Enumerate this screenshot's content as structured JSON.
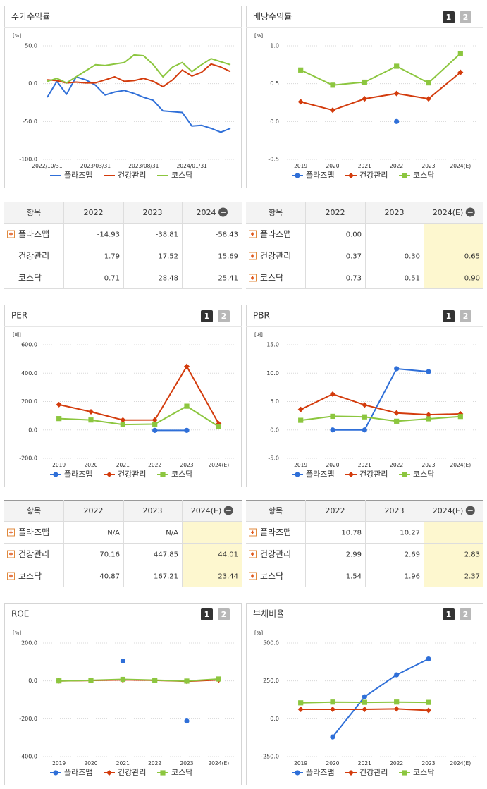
{
  "chart_data": [
    {
      "type": "line",
      "title": "주가수익률",
      "unit": "[%]",
      "categories": [
        "2022/10/31",
        null,
        null,
        null,
        null,
        "2023/03/31",
        null,
        null,
        null,
        null,
        "2023/08/31",
        null,
        null,
        null,
        null,
        "2024/01/31",
        null,
        null,
        null,
        null
      ],
      "ylim": [
        -100,
        50
      ],
      "yticks": [
        {
          "value": -100,
          "label": "-100.0"
        },
        {
          "value": -50,
          "label": "-50.0"
        },
        {
          "value": 0,
          "label": "0.0"
        },
        {
          "value": 50,
          "label": "50.0"
        }
      ],
      "grid": true,
      "series": [
        {
          "name": "플라즈맵",
          "color": "#2f6fd8",
          "values": [
            -18,
            3,
            -14,
            9,
            5,
            -2,
            -15,
            -11,
            -9,
            -13,
            -18,
            -22,
            -36,
            -37,
            -38,
            -56,
            -55,
            -59,
            -64,
            -59
          ]
        },
        {
          "name": "건강관리",
          "color": "#d33b0c",
          "values": [
            5,
            4,
            1,
            2,
            1,
            1,
            5,
            9,
            3,
            4,
            7,
            3,
            -4,
            5,
            18,
            10,
            15,
            26,
            22,
            16
          ]
        },
        {
          "name": "코스닥",
          "color": "#8cc63f",
          "values": [
            3,
            7,
            1,
            9,
            17,
            25,
            24,
            26,
            28,
            38,
            37,
            25,
            9,
            22,
            28,
            16,
            25,
            33,
            29,
            25
          ]
        }
      ]
    },
    {
      "type": "line",
      "title": "배당수익률",
      "unit": "[%]",
      "buttons": [
        "1",
        "2"
      ],
      "categories": [
        "2019",
        "2020",
        "2021",
        "2022",
        "2023",
        "2024(E)"
      ],
      "ylim": [
        -0.5,
        1.0
      ],
      "yticks": [
        -0.5,
        {
          "value": 0,
          "label": "0.0"
        },
        0.5,
        {
          "value": 1.0,
          "label": "1.0"
        }
      ],
      "grid": true,
      "series": [
        {
          "name": "플라즈맵",
          "color": "#2f6fd8",
          "marker": "circle",
          "values": [
            null,
            null,
            null,
            0.0,
            null,
            null
          ]
        },
        {
          "name": "건강관리",
          "color": "#d33b0c",
          "marker": "diamond",
          "values": [
            0.26,
            0.15,
            0.3,
            0.37,
            0.3,
            0.65
          ]
        },
        {
          "name": "코스닥",
          "color": "#8cc63f",
          "marker": "square",
          "values": [
            0.68,
            0.48,
            0.52,
            0.73,
            0.51,
            0.9
          ]
        }
      ]
    },
    {
      "type": "line",
      "title": "PER",
      "unit": "[배]",
      "buttons": [
        "1",
        "2"
      ],
      "categories": [
        "2019",
        "2020",
        "2021",
        "2022",
        "2023",
        "2024(E)"
      ],
      "ylim": [
        -200,
        600
      ],
      "yticks": [
        {
          "value": -200,
          "label": "-200.0"
        },
        {
          "value": 0,
          "label": "0.0"
        },
        {
          "value": 200,
          "label": "200.0"
        },
        {
          "value": 400,
          "label": "400.0"
        },
        {
          "value": 600,
          "label": "600.0"
        }
      ],
      "grid": true,
      "series": [
        {
          "name": "플라즈맵",
          "color": "#2f6fd8",
          "marker": "circle",
          "values": [
            null,
            null,
            null,
            -3,
            -3,
            null
          ]
        },
        {
          "name": "건강관리",
          "color": "#d33b0c",
          "marker": "diamond",
          "values": [
            178,
            128,
            70,
            70.16,
            447.85,
            44.01
          ]
        },
        {
          "name": "코스닥",
          "color": "#8cc63f",
          "marker": "square",
          "values": [
            80,
            70,
            38,
            40.87,
            167.21,
            23.44
          ]
        }
      ]
    },
    {
      "type": "line",
      "title": "PBR",
      "unit": "[배]",
      "buttons": [
        "1",
        "2"
      ],
      "categories": [
        "2019",
        "2020",
        "2021",
        "2022",
        "2023",
        "2024(E)"
      ],
      "ylim": [
        -5,
        15
      ],
      "yticks": [
        {
          "value": -5,
          "label": "-5.0"
        },
        {
          "value": 0,
          "label": "0.0"
        },
        {
          "value": 5,
          "label": "5.0"
        },
        {
          "value": 10,
          "label": "10.0"
        },
        {
          "value": 15,
          "label": "15.0"
        }
      ],
      "grid": true,
      "series": [
        {
          "name": "플라즈맵",
          "color": "#2f6fd8",
          "marker": "circle",
          "values": [
            null,
            0,
            0,
            10.78,
            10.27,
            null
          ]
        },
        {
          "name": "건강관리",
          "color": "#d33b0c",
          "marker": "diamond",
          "values": [
            3.6,
            6.3,
            4.4,
            2.99,
            2.69,
            2.83
          ]
        },
        {
          "name": "코스닥",
          "color": "#8cc63f",
          "marker": "square",
          "values": [
            1.7,
            2.4,
            2.3,
            1.54,
            1.96,
            2.37
          ]
        }
      ]
    },
    {
      "type": "line",
      "title": "ROE",
      "unit": "[%]",
      "buttons": [
        "1",
        "2"
      ],
      "categories": [
        "2019",
        "2020",
        "2021",
        "2022",
        "2023",
        "2024(E)"
      ],
      "ylim": [
        -400,
        200
      ],
      "yticks": [
        {
          "value": -400,
          "label": "-400.0"
        },
        {
          "value": -200,
          "label": "-200.0"
        },
        {
          "value": 0,
          "label": "0.0"
        },
        {
          "value": 200,
          "label": "200.0"
        }
      ],
      "grid": true,
      "series": [
        {
          "name": "플라즈맵",
          "color": "#2f6fd8",
          "marker": "circle",
          "values": [
            null,
            null,
            105,
            null,
            -212,
            null
          ]
        },
        {
          "name": "건강관리",
          "color": "#d33b0c",
          "marker": "diamond",
          "values": [
            0,
            2,
            5,
            3,
            -2,
            5
          ]
        },
        {
          "name": "코스닥",
          "color": "#8cc63f",
          "marker": "square",
          "values": [
            0,
            3,
            8,
            4,
            -1,
            10
          ]
        }
      ]
    },
    {
      "type": "line",
      "title": "부채비율",
      "unit": "[%]",
      "buttons": [
        "1",
        "2"
      ],
      "categories": [
        "2019",
        "2020",
        "2021",
        "2022",
        "2023",
        "2024(E)"
      ],
      "ylim": [
        -250,
        500
      ],
      "yticks": [
        {
          "value": -250,
          "label": "-250.0"
        },
        {
          "value": 0,
          "label": "0.0"
        },
        {
          "value": 250,
          "label": "250.0"
        },
        {
          "value": 500,
          "label": "500.0"
        }
      ],
      "grid": true,
      "series": [
        {
          "name": "플라즈맵",
          "color": "#2f6fd8",
          "marker": "circle",
          "values": [
            null,
            -120,
            145,
            290,
            395,
            null
          ]
        },
        {
          "name": "건강관리",
          "color": "#d33b0c",
          "marker": "diamond",
          "values": [
            62,
            62,
            62,
            65,
            55,
            null
          ]
        },
        {
          "name": "코스닥",
          "color": "#8cc63f",
          "marker": "square",
          "values": [
            105,
            110,
            108,
            110,
            108,
            null
          ]
        }
      ]
    }
  ],
  "tables": [
    {
      "columns": [
        "항목",
        "2022",
        "2023",
        "2024"
      ],
      "expandable": [
        true,
        false,
        false
      ],
      "highlight_last": false,
      "rows": [
        [
          "플라즈맵",
          "-14.93",
          "-38.81",
          "-58.43"
        ],
        [
          "건강관리",
          "1.79",
          "17.52",
          "15.69"
        ],
        [
          "코스닥",
          "0.71",
          "28.48",
          "25.41"
        ]
      ]
    },
    {
      "columns": [
        "항목",
        "2022",
        "2023",
        "2024(E)"
      ],
      "expandable": [
        true,
        true,
        true
      ],
      "highlight_last": true,
      "rows": [
        [
          "플라즈맵",
          "0.00",
          null,
          null
        ],
        [
          "건강관리",
          "0.37",
          "0.30",
          "0.65"
        ],
        [
          "코스닥",
          "0.73",
          "0.51",
          "0.90"
        ]
      ]
    },
    {
      "columns": [
        "항목",
        "2022",
        "2023",
        "2024(E)"
      ],
      "expandable": [
        true,
        true,
        true
      ],
      "highlight_last": true,
      "rows": [
        [
          "플라즈맵",
          "N/A",
          "N/A",
          null
        ],
        [
          "건강관리",
          "70.16",
          "447.85",
          "44.01"
        ],
        [
          "코스닥",
          "40.87",
          "167.21",
          "23.44"
        ]
      ]
    },
    {
      "columns": [
        "항목",
        "2022",
        "2023",
        "2024(E)"
      ],
      "expandable": [
        true,
        true,
        true
      ],
      "highlight_last": true,
      "rows": [
        [
          "플라즈맵",
          "10.78",
          "10.27",
          null
        ],
        [
          "건강관리",
          "2.99",
          "2.69",
          "2.83"
        ],
        [
          "코스닥",
          "1.54",
          "1.96",
          "2.37"
        ]
      ]
    }
  ]
}
